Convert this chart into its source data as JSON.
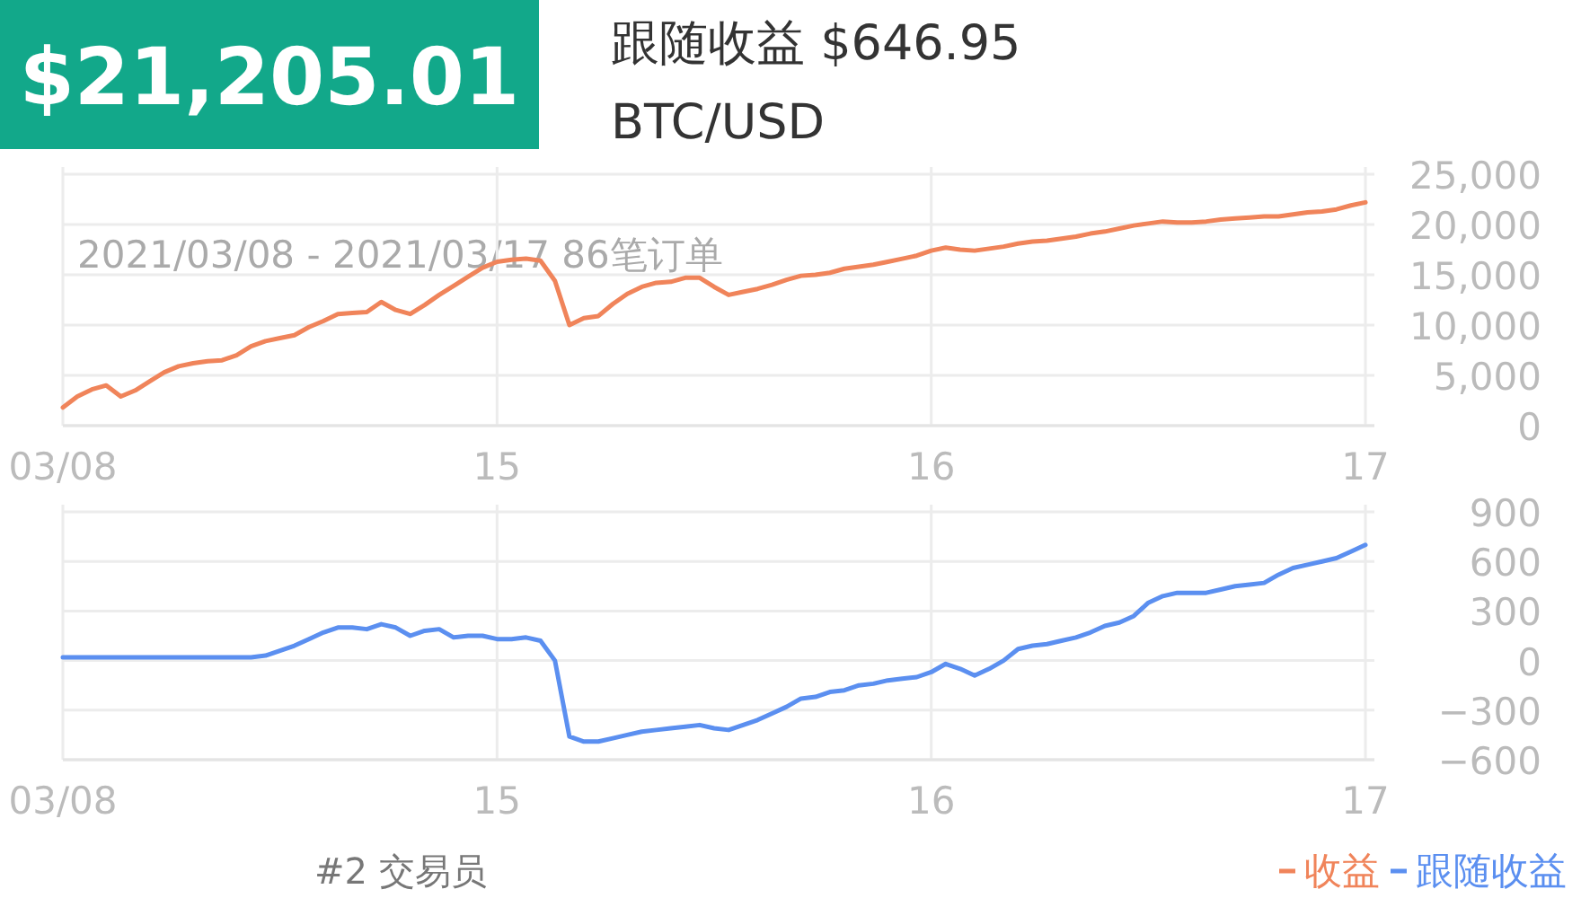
{
  "chart_data": [
    {
      "type": "line",
      "title": "$21,205.01",
      "subtitle": "BTC/USD",
      "annotations": [
        "跟随收益 $646.95",
        "2021/03/08 - 2021/03/17 86笔订单"
      ],
      "categories": [
        "03/08",
        null,
        null,
        null,
        null,
        null,
        null,
        null,
        null,
        null,
        null,
        null,
        null,
        null,
        null,
        null,
        null,
        null,
        null,
        null,
        null,
        null,
        null,
        null,
        null,
        null,
        null,
        null,
        null,
        null,
        "15",
        null,
        null,
        null,
        null,
        null,
        null,
        null,
        null,
        null,
        null,
        null,
        null,
        null,
        null,
        null,
        null,
        null,
        null,
        null,
        null,
        null,
        null,
        null,
        null,
        null,
        null,
        null,
        null,
        null,
        "16",
        null,
        null,
        null,
        null,
        null,
        null,
        null,
        null,
        null,
        null,
        null,
        null,
        null,
        null,
        null,
        null,
        null,
        null,
        null,
        null,
        null,
        null,
        null,
        null,
        null,
        null,
        null,
        null,
        null,
        "17"
      ],
      "ylim": [
        0,
        25000
      ],
      "yticks": [
        0,
        {
          "value": 5000,
          "label": "5,000"
        },
        {
          "value": 10000,
          "label": "10,000"
        },
        {
          "value": 15000,
          "label": "15,000"
        },
        {
          "value": 20000,
          "label": "20,000"
        },
        {
          "value": 25000,
          "label": "25,000"
        }
      ],
      "grid": true,
      "legend": "bottom right",
      "marker": "none",
      "line_style": "solid",
      "series": [
        {
          "name": "收益",
          "color": "#f0845a",
          "values": [
            1800,
            2900,
            3600,
            4000,
            2900,
            3500,
            4400,
            5300,
            5900,
            6200,
            6400,
            6500,
            7000,
            7900,
            8400,
            8700,
            9000,
            9800,
            10400,
            11100,
            11200,
            11300,
            12300,
            11500,
            11100,
            12000,
            13000,
            13900,
            14800,
            15700,
            16300,
            16500,
            16600,
            16400,
            14400,
            10000,
            10700,
            10900,
            12100,
            13100,
            13800,
            14200,
            14300,
            14700,
            14700,
            13800,
            13000,
            13300,
            13600,
            14000,
            14500,
            14900,
            15000,
            15200,
            15600,
            15800,
            16000,
            16300,
            16600,
            16900,
            17400,
            17700,
            17500,
            17400,
            17600,
            17800,
            18100,
            18300,
            18400,
            18600,
            18800,
            19100,
            19300,
            19600,
            19900,
            20100,
            20300,
            20200,
            20200,
            20300,
            20500,
            20600,
            20700,
            20800,
            20800,
            21000,
            21200,
            21300,
            21500,
            21900,
            22200
          ]
        }
      ]
    },
    {
      "type": "line",
      "annotations": [
        "#2 交易员"
      ],
      "categories": [
        "03/08",
        null,
        null,
        null,
        null,
        null,
        null,
        null,
        null,
        null,
        null,
        null,
        null,
        null,
        null,
        null,
        null,
        null,
        null,
        null,
        null,
        null,
        null,
        null,
        null,
        null,
        null,
        null,
        null,
        null,
        "15",
        null,
        null,
        null,
        null,
        null,
        null,
        null,
        null,
        null,
        null,
        null,
        null,
        null,
        null,
        null,
        null,
        null,
        null,
        null,
        null,
        null,
        null,
        null,
        null,
        null,
        null,
        null,
        null,
        null,
        "16",
        null,
        null,
        null,
        null,
        null,
        null,
        null,
        null,
        null,
        null,
        null,
        null,
        null,
        null,
        null,
        null,
        null,
        null,
        null,
        null,
        null,
        null,
        null,
        null,
        null,
        null,
        null,
        null,
        null,
        "17"
      ],
      "ylim": [
        -600,
        900
      ],
      "yticks": [
        {
          "value": -600,
          "label": "−600"
        },
        {
          "value": -300,
          "label": "−300"
        },
        0,
        300,
        600,
        900
      ],
      "grid": true,
      "legend": "bottom right",
      "marker": "none",
      "line_style": "solid",
      "series": [
        {
          "name": "跟随收益",
          "color": "#5b8ff0",
          "values": [
            20,
            20,
            20,
            20,
            20,
            20,
            20,
            20,
            20,
            20,
            20,
            20,
            20,
            20,
            30,
            60,
            90,
            130,
            170,
            200,
            200,
            190,
            220,
            200,
            150,
            180,
            190,
            140,
            150,
            150,
            130,
            130,
            140,
            120,
            0,
            -460,
            -490,
            -490,
            -470,
            -450,
            -430,
            -420,
            -410,
            -400,
            -390,
            -410,
            -420,
            -390,
            -360,
            -320,
            -280,
            -230,
            -220,
            -190,
            -180,
            -150,
            -140,
            -120,
            -110,
            -100,
            -70,
            -20,
            -50,
            -90,
            -50,
            0,
            70,
            90,
            100,
            120,
            140,
            170,
            210,
            230,
            270,
            350,
            390,
            410,
            410,
            410,
            430,
            450,
            460,
            470,
            520,
            560,
            580,
            600,
            620,
            660,
            700
          ]
        }
      ]
    }
  ]
}
